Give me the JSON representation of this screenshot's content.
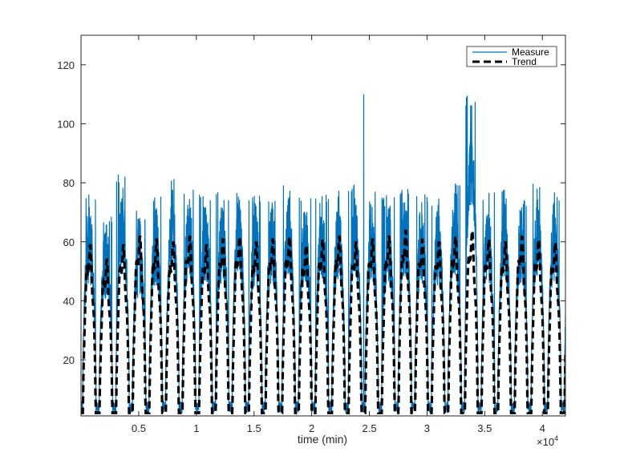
{
  "chart_data": {
    "type": "line",
    "xlabel": "time (min)",
    "ylabel": "",
    "title": "",
    "x_exponent_label": "×10",
    "x_exponent_power": "4",
    "xlim": [
      0,
      42000
    ],
    "ylim": [
      1,
      130
    ],
    "xticks": [
      5000,
      10000,
      15000,
      20000,
      25000,
      30000,
      35000,
      40000
    ],
    "xtick_labels": [
      "0.5",
      "1",
      "1.5",
      "2",
      "2.5",
      "3",
      "3.5",
      "4"
    ],
    "yticks": [
      20,
      40,
      60,
      80,
      100,
      120
    ],
    "ytick_labels": [
      "20",
      "40",
      "60",
      "80",
      "100",
      "120"
    ],
    "grid": false,
    "legend_position": "top-right",
    "period": 1440,
    "series": [
      {
        "name": "Measure",
        "style": "solid",
        "color": "#0072BD",
        "daily_peaks": [
          77,
          70,
          84,
          71,
          76,
          82,
          80,
          78,
          77,
          80,
          76,
          77,
          80,
          76,
          77,
          78,
          80,
          77,
          76,
          80,
          77,
          76,
          80,
          110,
          77,
          78,
          76,
          80,
          77,
          79,
          76,
          78,
          80,
          77,
          76,
          75,
          78,
          66,
          76,
          78
        ],
        "points": [
          [
            0,
            10
          ],
          [
            720,
            70
          ],
          [
            1440,
            2
          ],
          [
            2160,
            65
          ],
          [
            2880,
            2
          ],
          [
            3380,
            84
          ],
          [
            3600,
            55
          ],
          [
            4320,
            2
          ],
          [
            5040,
            66
          ],
          [
            5760,
            2
          ],
          [
            6480,
            71
          ],
          [
            7200,
            2
          ],
          [
            7920,
            70
          ],
          [
            8640,
            2
          ],
          [
            9360,
            72
          ],
          [
            10080,
            2
          ],
          [
            10800,
            70
          ],
          [
            11520,
            2
          ],
          [
            12240,
            73
          ],
          [
            12960,
            2
          ],
          [
            13680,
            72
          ],
          [
            14400,
            2
          ],
          [
            15120,
            72
          ],
          [
            15840,
            2
          ],
          [
            16560,
            74
          ],
          [
            17280,
            2
          ],
          [
            18000,
            71
          ],
          [
            18720,
            2
          ],
          [
            19440,
            72
          ],
          [
            20160,
            2
          ],
          [
            20880,
            74
          ],
          [
            21600,
            2
          ],
          [
            22320,
            71
          ],
          [
            23040,
            2
          ],
          [
            23760,
            72
          ],
          [
            24480,
            110
          ],
          [
            25200,
            2
          ],
          [
            25920,
            72
          ],
          [
            26640,
            2
          ],
          [
            27360,
            73
          ],
          [
            28080,
            2
          ],
          [
            28800,
            72
          ],
          [
            29520,
            2
          ],
          [
            30240,
            74
          ],
          [
            30960,
            2
          ],
          [
            31680,
            72
          ],
          [
            32400,
            2
          ],
          [
            33120,
            77
          ],
          [
            33840,
            2
          ],
          [
            34560,
            72
          ],
          [
            35280,
            2
          ],
          [
            36000,
            73
          ],
          [
            36720,
            2
          ],
          [
            37440,
            71
          ],
          [
            38160,
            2
          ],
          [
            38880,
            62
          ],
          [
            39600,
            2
          ],
          [
            40320,
            74
          ],
          [
            41040,
            2
          ],
          [
            41760,
            70
          ],
          [
            42000,
            2
          ]
        ]
      },
      {
        "name": "Trend",
        "style": "dashed",
        "color": "#000000",
        "daily_peaks": [
          55,
          50,
          55,
          58,
          57,
          56,
          58,
          55,
          57,
          58,
          56,
          57,
          58,
          55,
          57,
          58,
          56,
          57,
          58,
          60,
          57,
          56,
          58,
          60,
          57,
          56,
          58,
          57,
          56,
          58,
          57,
          55,
          56,
          58,
          57,
          56,
          56,
          52,
          58,
          57
        ],
        "points": [
          [
            0,
            2
          ],
          [
            720,
            50
          ],
          [
            1440,
            2
          ],
          [
            2160,
            52
          ],
          [
            2880,
            2
          ],
          [
            3600,
            55
          ],
          [
            4320,
            2
          ],
          [
            5040,
            56
          ],
          [
            5760,
            2
          ],
          [
            6480,
            55
          ],
          [
            7200,
            2
          ],
          [
            7920,
            56
          ],
          [
            8640,
            2
          ],
          [
            9360,
            57
          ],
          [
            10080,
            2
          ],
          [
            10800,
            56
          ],
          [
            11520,
            2
          ],
          [
            12240,
            57
          ],
          [
            12960,
            2
          ],
          [
            13680,
            56
          ],
          [
            14400,
            2
          ],
          [
            15120,
            57
          ],
          [
            15840,
            2
          ],
          [
            16560,
            57
          ],
          [
            17280,
            2
          ],
          [
            18000,
            56
          ],
          [
            18720,
            2
          ],
          [
            19440,
            58
          ],
          [
            20160,
            2
          ],
          [
            20880,
            59
          ],
          [
            21600,
            2
          ],
          [
            22320,
            57
          ],
          [
            23040,
            2
          ],
          [
            23760,
            59
          ],
          [
            24480,
            2
          ],
          [
            25200,
            56
          ],
          [
            25920,
            2
          ],
          [
            26640,
            57
          ],
          [
            27360,
            2
          ],
          [
            28080,
            56
          ],
          [
            28800,
            2
          ],
          [
            29520,
            57
          ],
          [
            30240,
            2
          ],
          [
            30960,
            56
          ],
          [
            31680,
            2
          ],
          [
            32400,
            57
          ],
          [
            33120,
            2
          ],
          [
            33840,
            56
          ],
          [
            34560,
            2
          ],
          [
            35280,
            57
          ],
          [
            36000,
            2
          ],
          [
            36720,
            56
          ],
          [
            37440,
            2
          ],
          [
            38160,
            52
          ],
          [
            38880,
            2
          ],
          [
            39600,
            59
          ],
          [
            40320,
            2
          ],
          [
            41040,
            57
          ],
          [
            41760,
            2
          ],
          [
            42000,
            2
          ]
        ]
      }
    ]
  }
}
